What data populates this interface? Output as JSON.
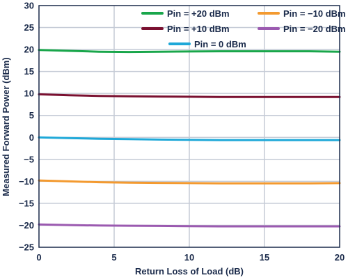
{
  "chart_data": {
    "type": "line",
    "xlabel": "Return Loss of Load (dB)",
    "ylabel": "Measured Forward Power (dBm)",
    "xlim": [
      0,
      20
    ],
    "ylim": [
      -25,
      30
    ],
    "xticks": [
      "0",
      "5",
      "10",
      "15",
      "20"
    ],
    "yticks": [
      "30",
      "25",
      "20",
      "15",
      "10",
      "5",
      "0",
      "−5",
      "−10",
      "−15",
      "−20",
      "−25"
    ],
    "grid": true,
    "legend_position": "top-right",
    "x": [
      0,
      2,
      4,
      6,
      8,
      10,
      12,
      14,
      16,
      18,
      20
    ],
    "series": [
      {
        "name": "Pin = +20 dBm",
        "color": "#19a64b",
        "values": [
          19.9,
          19.7,
          19.5,
          19.45,
          19.5,
          19.55,
          19.6,
          19.6,
          19.6,
          19.6,
          19.5
        ]
      },
      {
        "name": "Pin = +10 dBm",
        "color": "#7a1030",
        "values": [
          9.8,
          9.6,
          9.45,
          9.35,
          9.3,
          9.25,
          9.2,
          9.2,
          9.2,
          9.2,
          9.2
        ]
      },
      {
        "name": "Pin = 0 dBm",
        "color": "#1ea8d8",
        "values": [
          0.0,
          -0.15,
          -0.3,
          -0.4,
          -0.5,
          -0.55,
          -0.6,
          -0.6,
          -0.6,
          -0.6,
          -0.6
        ]
      },
      {
        "name": "Pin = −10 dBm",
        "color": "#f39a30",
        "values": [
          -9.8,
          -10.0,
          -10.2,
          -10.3,
          -10.35,
          -10.4,
          -10.45,
          -10.45,
          -10.45,
          -10.45,
          -10.4
        ]
      },
      {
        "name": "Pin = −20 dBm",
        "color": "#9b5ab0",
        "values": [
          -19.8,
          -19.95,
          -20.05,
          -20.1,
          -20.15,
          -20.2,
          -20.25,
          -20.25,
          -20.25,
          -20.25,
          -20.25
        ]
      }
    ],
    "legend_order": [
      0,
      3,
      1,
      4,
      2
    ]
  }
}
